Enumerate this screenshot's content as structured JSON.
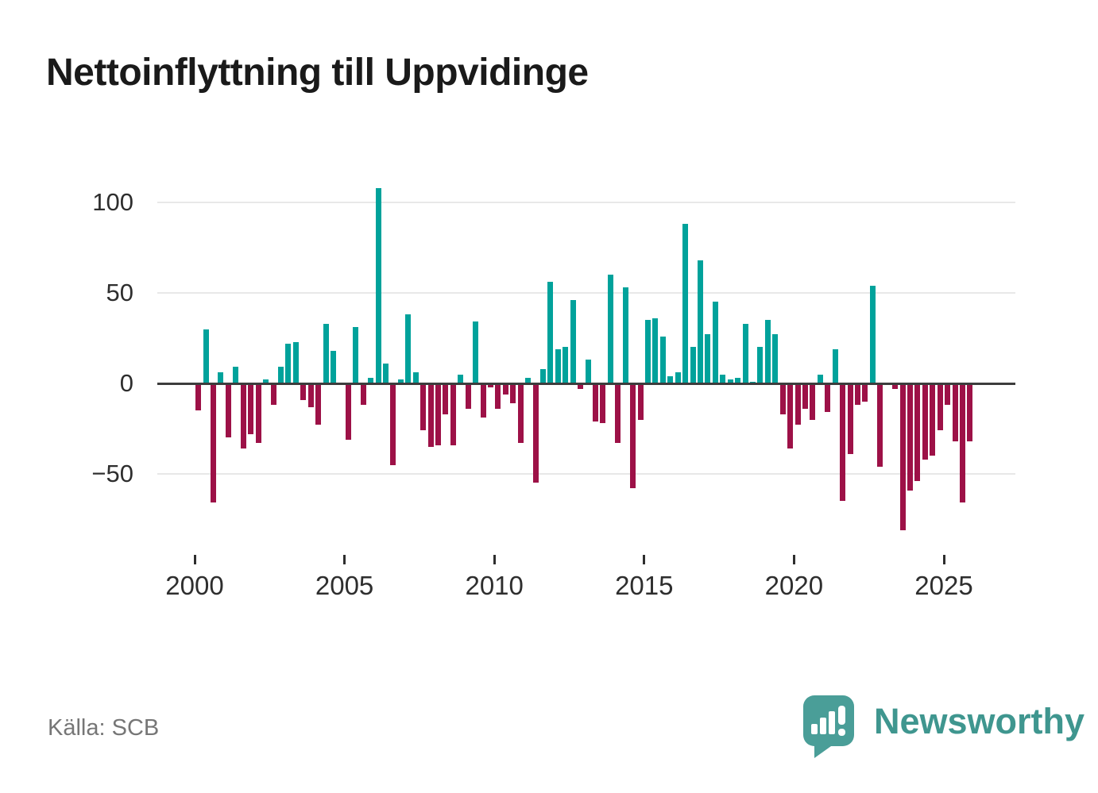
{
  "title": "Nettoinflyttning till Uppvidinge",
  "source": "Källa: SCB",
  "branding": {
    "wordmark": "Newsworthy",
    "icon": "newsworthy-speech-bubble-chart-icon"
  },
  "colors": {
    "positive": "#00a29b",
    "negative": "#9d1147",
    "axis": "#3d3d3d",
    "grid": "#e8e8e8",
    "text": "#2e2e2e",
    "muted": "#767676",
    "brand": "#3f968f",
    "brand_icon": "#4a9e98"
  },
  "chart_data": {
    "type": "bar",
    "title": "Nettoinflyttning till Uppvidinge",
    "xlabel": "",
    "ylabel": "",
    "grid": true,
    "legend": false,
    "ylim": [
      -90,
      112
    ],
    "y_ticks": [
      100,
      50,
      0,
      -50
    ],
    "y_tick_labels": [
      "100",
      "50",
      "0",
      "−50"
    ],
    "x_ticks": [
      2000,
      2005,
      2010,
      2015,
      2020,
      2025
    ],
    "x_tick_labels": [
      "2000",
      "2005",
      "2010",
      "2015",
      "2020",
      "2025"
    ],
    "categories": [
      "2000Q1",
      "2000Q2",
      "2000Q3",
      "2000Q4",
      "2001Q1",
      "2001Q2",
      "2001Q3",
      "2001Q4",
      "2002Q1",
      "2002Q2",
      "2002Q3",
      "2002Q4",
      "2003Q1",
      "2003Q2",
      "2003Q3",
      "2003Q4",
      "2004Q1",
      "2004Q2",
      "2004Q3",
      "2004Q4",
      "2005Q1",
      "2005Q2",
      "2005Q3",
      "2005Q4",
      "2006Q1",
      "2006Q2",
      "2006Q3",
      "2006Q4",
      "2007Q1",
      "2007Q2",
      "2007Q3",
      "2007Q4",
      "2008Q1",
      "2008Q2",
      "2008Q3",
      "2008Q4",
      "2009Q1",
      "2009Q2",
      "2009Q3",
      "2009Q4",
      "2010Q1",
      "2010Q2",
      "2010Q3",
      "2010Q4",
      "2011Q1",
      "2011Q2",
      "2011Q3",
      "2011Q4",
      "2012Q1",
      "2012Q2",
      "2012Q3",
      "2012Q4",
      "2013Q1",
      "2013Q2",
      "2013Q3",
      "2013Q4",
      "2014Q1",
      "2014Q2",
      "2014Q3",
      "2014Q4",
      "2015Q1",
      "2015Q2",
      "2015Q3",
      "2015Q4",
      "2016Q1",
      "2016Q2",
      "2016Q3",
      "2016Q4",
      "2017Q1",
      "2017Q2",
      "2017Q3",
      "2017Q4",
      "2018Q1",
      "2018Q2",
      "2018Q3",
      "2018Q4",
      "2019Q1",
      "2019Q2",
      "2019Q3",
      "2019Q4",
      "2020Q1",
      "2020Q2",
      "2020Q3",
      "2020Q4",
      "2021Q1",
      "2021Q2",
      "2021Q3",
      "2021Q4",
      "2022Q1",
      "2022Q2",
      "2022Q3",
      "2022Q4",
      "2023Q1",
      "2023Q2",
      "2023Q3",
      "2023Q4",
      "2024Q1",
      "2024Q2",
      "2024Q3",
      "2024Q4",
      "2025Q1",
      "2025Q2",
      "2025Q3",
      "2025Q4"
    ],
    "values": [
      -15,
      30,
      -66,
      6,
      -30,
      9,
      -36,
      -28,
      -33,
      2,
      -12,
      9,
      22,
      23,
      -9,
      -13,
      -23,
      33,
      18,
      0,
      -31,
      31,
      -12,
      3,
      108,
      11,
      -45,
      2,
      38,
      6,
      -26,
      -35,
      -34,
      -17,
      -34,
      5,
      -14,
      34,
      -19,
      -2,
      -14,
      -6,
      -11,
      -33,
      3,
      -55,
      8,
      56,
      19,
      20,
      46,
      -3,
      13,
      -21,
      -22,
      60,
      -33,
      53,
      -58,
      -20,
      35,
      36,
      26,
      4,
      6,
      88,
      20,
      68,
      27,
      45,
      5,
      2,
      3,
      33,
      1,
      20,
      35,
      27,
      -17,
      -36,
      -23,
      -14,
      -20,
      5,
      -16,
      19,
      -65,
      -39,
      -12,
      -10,
      54,
      -46,
      0,
      -3,
      -81,
      -59,
      -54,
      -42,
      -40,
      -26,
      -12,
      -32,
      -66,
      -32
    ]
  }
}
